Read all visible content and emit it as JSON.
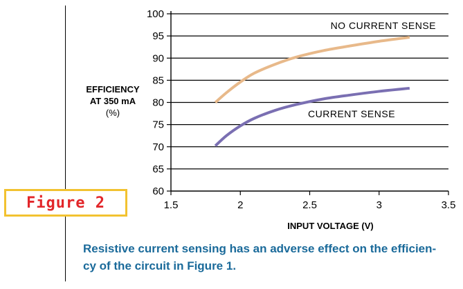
{
  "figure": {
    "label": "Figure 2",
    "caption_line1": "Resistive current sensing has an adverse effect on the efficien-",
    "caption_line2": "cy of the circuit in Figure 1."
  },
  "chart_data": {
    "type": "line",
    "ylabel_lines": [
      "EFFICIENCY",
      "AT 350 mA",
      "(%)"
    ],
    "xlabel": "INPUT VOLTAGE (V)",
    "xlim": [
      1.5,
      3.5
    ],
    "ylim": [
      60,
      100
    ],
    "x_ticks": [
      "1.5",
      "2",
      "2.5",
      "3",
      "3.5"
    ],
    "y_ticks": [
      "100",
      "95",
      "90",
      "85",
      "80",
      "75",
      "70",
      "65",
      "60"
    ],
    "grid": "horizontal",
    "series": [
      {
        "name": "NO CURRENT SENSE",
        "color": "#e8b98a",
        "x": [
          1.82,
          1.9,
          2.0,
          2.1,
          2.25,
          2.4,
          2.6,
          2.8,
          3.0,
          3.22
        ],
        "y": [
          80.0,
          82.2,
          84.6,
          86.6,
          88.6,
          90.2,
          91.7,
          92.8,
          93.8,
          94.7
        ]
      },
      {
        "name": "CURRENT SENSE",
        "color": "#7a6fb2",
        "x": [
          1.82,
          1.9,
          2.0,
          2.1,
          2.25,
          2.4,
          2.6,
          2.8,
          3.0,
          3.22
        ],
        "y": [
          70.2,
          72.5,
          74.7,
          76.4,
          78.2,
          79.5,
          80.8,
          81.7,
          82.5,
          83.2
        ]
      }
    ]
  }
}
